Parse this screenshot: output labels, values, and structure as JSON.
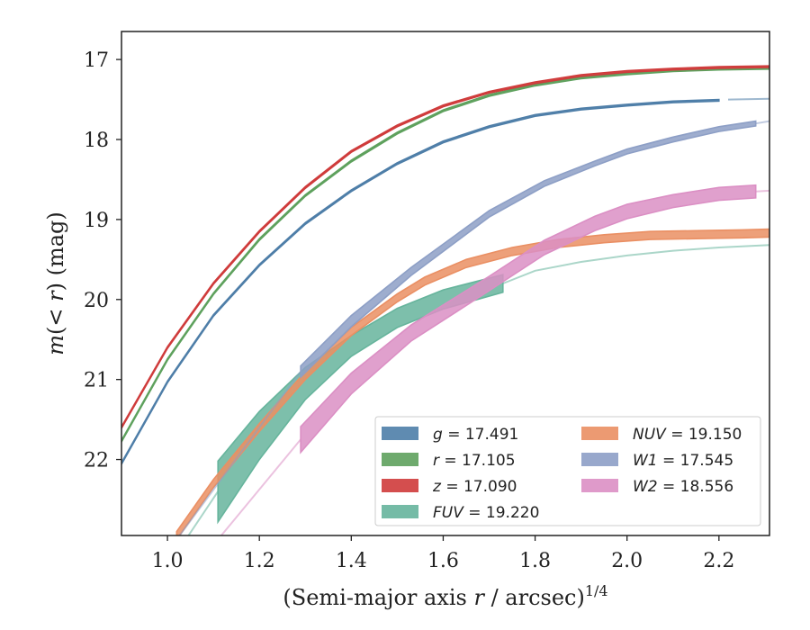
{
  "chart_data": {
    "type": "line",
    "xlabel": "(Semi-major axis r / arcsec)",
    "xlabel_parts": [
      "(Semi-major axis ",
      "r",
      " / arcsec)",
      "1/4"
    ],
    "ylabel_parts": [
      "m",
      "(< ",
      "r",
      ") (mag)"
    ],
    "xlim": [
      0.9,
      2.31
    ],
    "ylim": [
      22.95,
      16.65
    ],
    "y_inverted": true,
    "x_ticks": [
      1.0,
      1.2,
      1.4,
      1.6,
      1.8,
      2.0,
      2.2
    ],
    "x_tick_labels": [
      "1.0",
      "1.2",
      "1.4",
      "1.6",
      "1.8",
      "2.0",
      "2.2"
    ],
    "y_ticks": [
      17,
      18,
      19,
      20,
      21,
      22
    ],
    "y_tick_labels": [
      "17",
      "18",
      "19",
      "20",
      "21",
      "22"
    ],
    "grid": false,
    "legend_position": "lower-right",
    "series": [
      {
        "name": "g",
        "value_label": "17.491",
        "color": "#4e7ea8",
        "x": [
          0.9,
          1.0,
          1.1,
          1.2,
          1.3,
          1.4,
          1.5,
          1.6,
          1.7,
          1.8,
          1.9,
          2.0,
          2.1,
          2.2
        ],
        "y": [
          22.05,
          21.03,
          20.2,
          19.57,
          19.05,
          18.64,
          18.3,
          18.03,
          17.84,
          17.7,
          17.62,
          17.57,
          17.53,
          17.51
        ],
        "y_err": [
          0.01,
          0.01,
          0.01,
          0.01,
          0.01,
          0.01,
          0.01,
          0.01,
          0.01,
          0.01,
          0.01,
          0.01,
          0.01,
          0.01
        ],
        "ext_x": [
          2.22,
          2.31
        ],
        "ext_y": [
          17.5,
          17.49
        ]
      },
      {
        "name": "r",
        "value_label": "17.105",
        "color": "#5ea15d",
        "x": [
          0.9,
          1.0,
          1.1,
          1.2,
          1.3,
          1.4,
          1.5,
          1.6,
          1.7,
          1.8,
          1.9,
          2.0,
          2.1,
          2.2,
          2.31
        ],
        "y": [
          21.77,
          20.75,
          19.93,
          19.25,
          18.7,
          18.27,
          17.92,
          17.64,
          17.45,
          17.32,
          17.23,
          17.18,
          17.14,
          17.12,
          17.11
        ],
        "y_err": [
          0.01,
          0.01,
          0.01,
          0.01,
          0.01,
          0.01,
          0.01,
          0.01,
          0.01,
          0.01,
          0.01,
          0.01,
          0.01,
          0.01,
          0.01
        ]
      },
      {
        "name": "z",
        "value_label": "17.090",
        "color": "#cf3b3b",
        "x": [
          0.9,
          1.0,
          1.1,
          1.2,
          1.3,
          1.4,
          1.5,
          1.6,
          1.7,
          1.8,
          1.9,
          2.0,
          2.1,
          2.2,
          2.31
        ],
        "y": [
          21.6,
          20.6,
          19.8,
          19.15,
          18.6,
          18.15,
          17.83,
          17.58,
          17.41,
          17.29,
          17.2,
          17.15,
          17.12,
          17.1,
          17.09
        ],
        "y_err": [
          0.01,
          0.01,
          0.01,
          0.01,
          0.01,
          0.01,
          0.01,
          0.01,
          0.01,
          0.01,
          0.01,
          0.01,
          0.01,
          0.01,
          0.01
        ]
      },
      {
        "name": "FUV",
        "value_label": "19.220",
        "color": "#66b49c",
        "x": [
          1.11,
          1.2,
          1.3,
          1.4,
          1.5,
          1.6,
          1.73
        ],
        "y": [
          22.4,
          21.7,
          21.05,
          20.58,
          20.23,
          20.0,
          19.8
        ],
        "y_err": [
          0.38,
          0.3,
          0.2,
          0.13,
          0.12,
          0.12,
          0.11
        ],
        "ext_x": [
          1.73,
          1.8,
          1.9,
          2.0,
          2.1,
          2.2,
          2.31
        ],
        "ext_y": [
          19.8,
          19.64,
          19.53,
          19.45,
          19.39,
          19.35,
          19.32
        ],
        "lead_x": [
          1.04,
          1.11
        ],
        "lead_y": [
          23.0,
          22.4
        ]
      },
      {
        "name": "NUV",
        "value_label": "19.150",
        "color": "#ea8f63",
        "x": [
          1.02,
          1.1,
          1.2,
          1.3,
          1.4,
          1.5,
          1.56,
          1.65,
          1.75,
          1.85,
          1.95,
          2.05,
          2.15,
          2.25,
          2.31
        ],
        "y": [
          22.95,
          22.3,
          21.6,
          20.95,
          20.4,
          19.98,
          19.77,
          19.55,
          19.4,
          19.3,
          19.24,
          19.2,
          19.19,
          19.18,
          19.17
        ],
        "y_err": [
          0.05,
          0.05,
          0.05,
          0.05,
          0.05,
          0.05,
          0.05,
          0.05,
          0.05,
          0.05,
          0.05,
          0.05,
          0.05,
          0.05,
          0.05
        ]
      },
      {
        "name": "W1",
        "value_label": "17.545",
        "color": "#8d9fc6",
        "x": [
          1.29,
          1.4,
          1.53,
          1.7,
          1.82,
          1.93,
          2.0,
          2.1,
          2.2,
          2.28
        ],
        "y": [
          20.9,
          20.27,
          19.65,
          18.93,
          18.55,
          18.3,
          18.15,
          18.0,
          17.87,
          17.8
        ],
        "y_err": [
          0.07,
          0.07,
          0.05,
          0.04,
          0.035,
          0.03,
          0.03,
          0.03,
          0.03,
          0.03
        ],
        "ext_x": [
          2.28,
          2.31
        ],
        "ext_y": [
          17.8,
          17.77
        ],
        "lead_x": [
          1.02,
          1.29
        ],
        "lead_y": [
          23.0,
          20.9
        ]
      },
      {
        "name": "W2",
        "value_label": "18.556",
        "color": "#db8fc4",
        "x": [
          1.29,
          1.4,
          1.53,
          1.7,
          1.82,
          1.93,
          2.0,
          2.1,
          2.2,
          2.28
        ],
        "y": [
          21.75,
          21.05,
          20.42,
          19.8,
          19.35,
          19.05,
          18.9,
          18.77,
          18.68,
          18.65
        ],
        "y_err": [
          0.16,
          0.13,
          0.1,
          0.09,
          0.09,
          0.09,
          0.09,
          0.08,
          0.08,
          0.08
        ],
        "ext_x": [
          2.28,
          2.31
        ],
        "ext_y": [
          18.65,
          18.64
        ],
        "lead_x": [
          1.11,
          1.29
        ],
        "lead_y": [
          23.0,
          21.75
        ]
      }
    ]
  }
}
